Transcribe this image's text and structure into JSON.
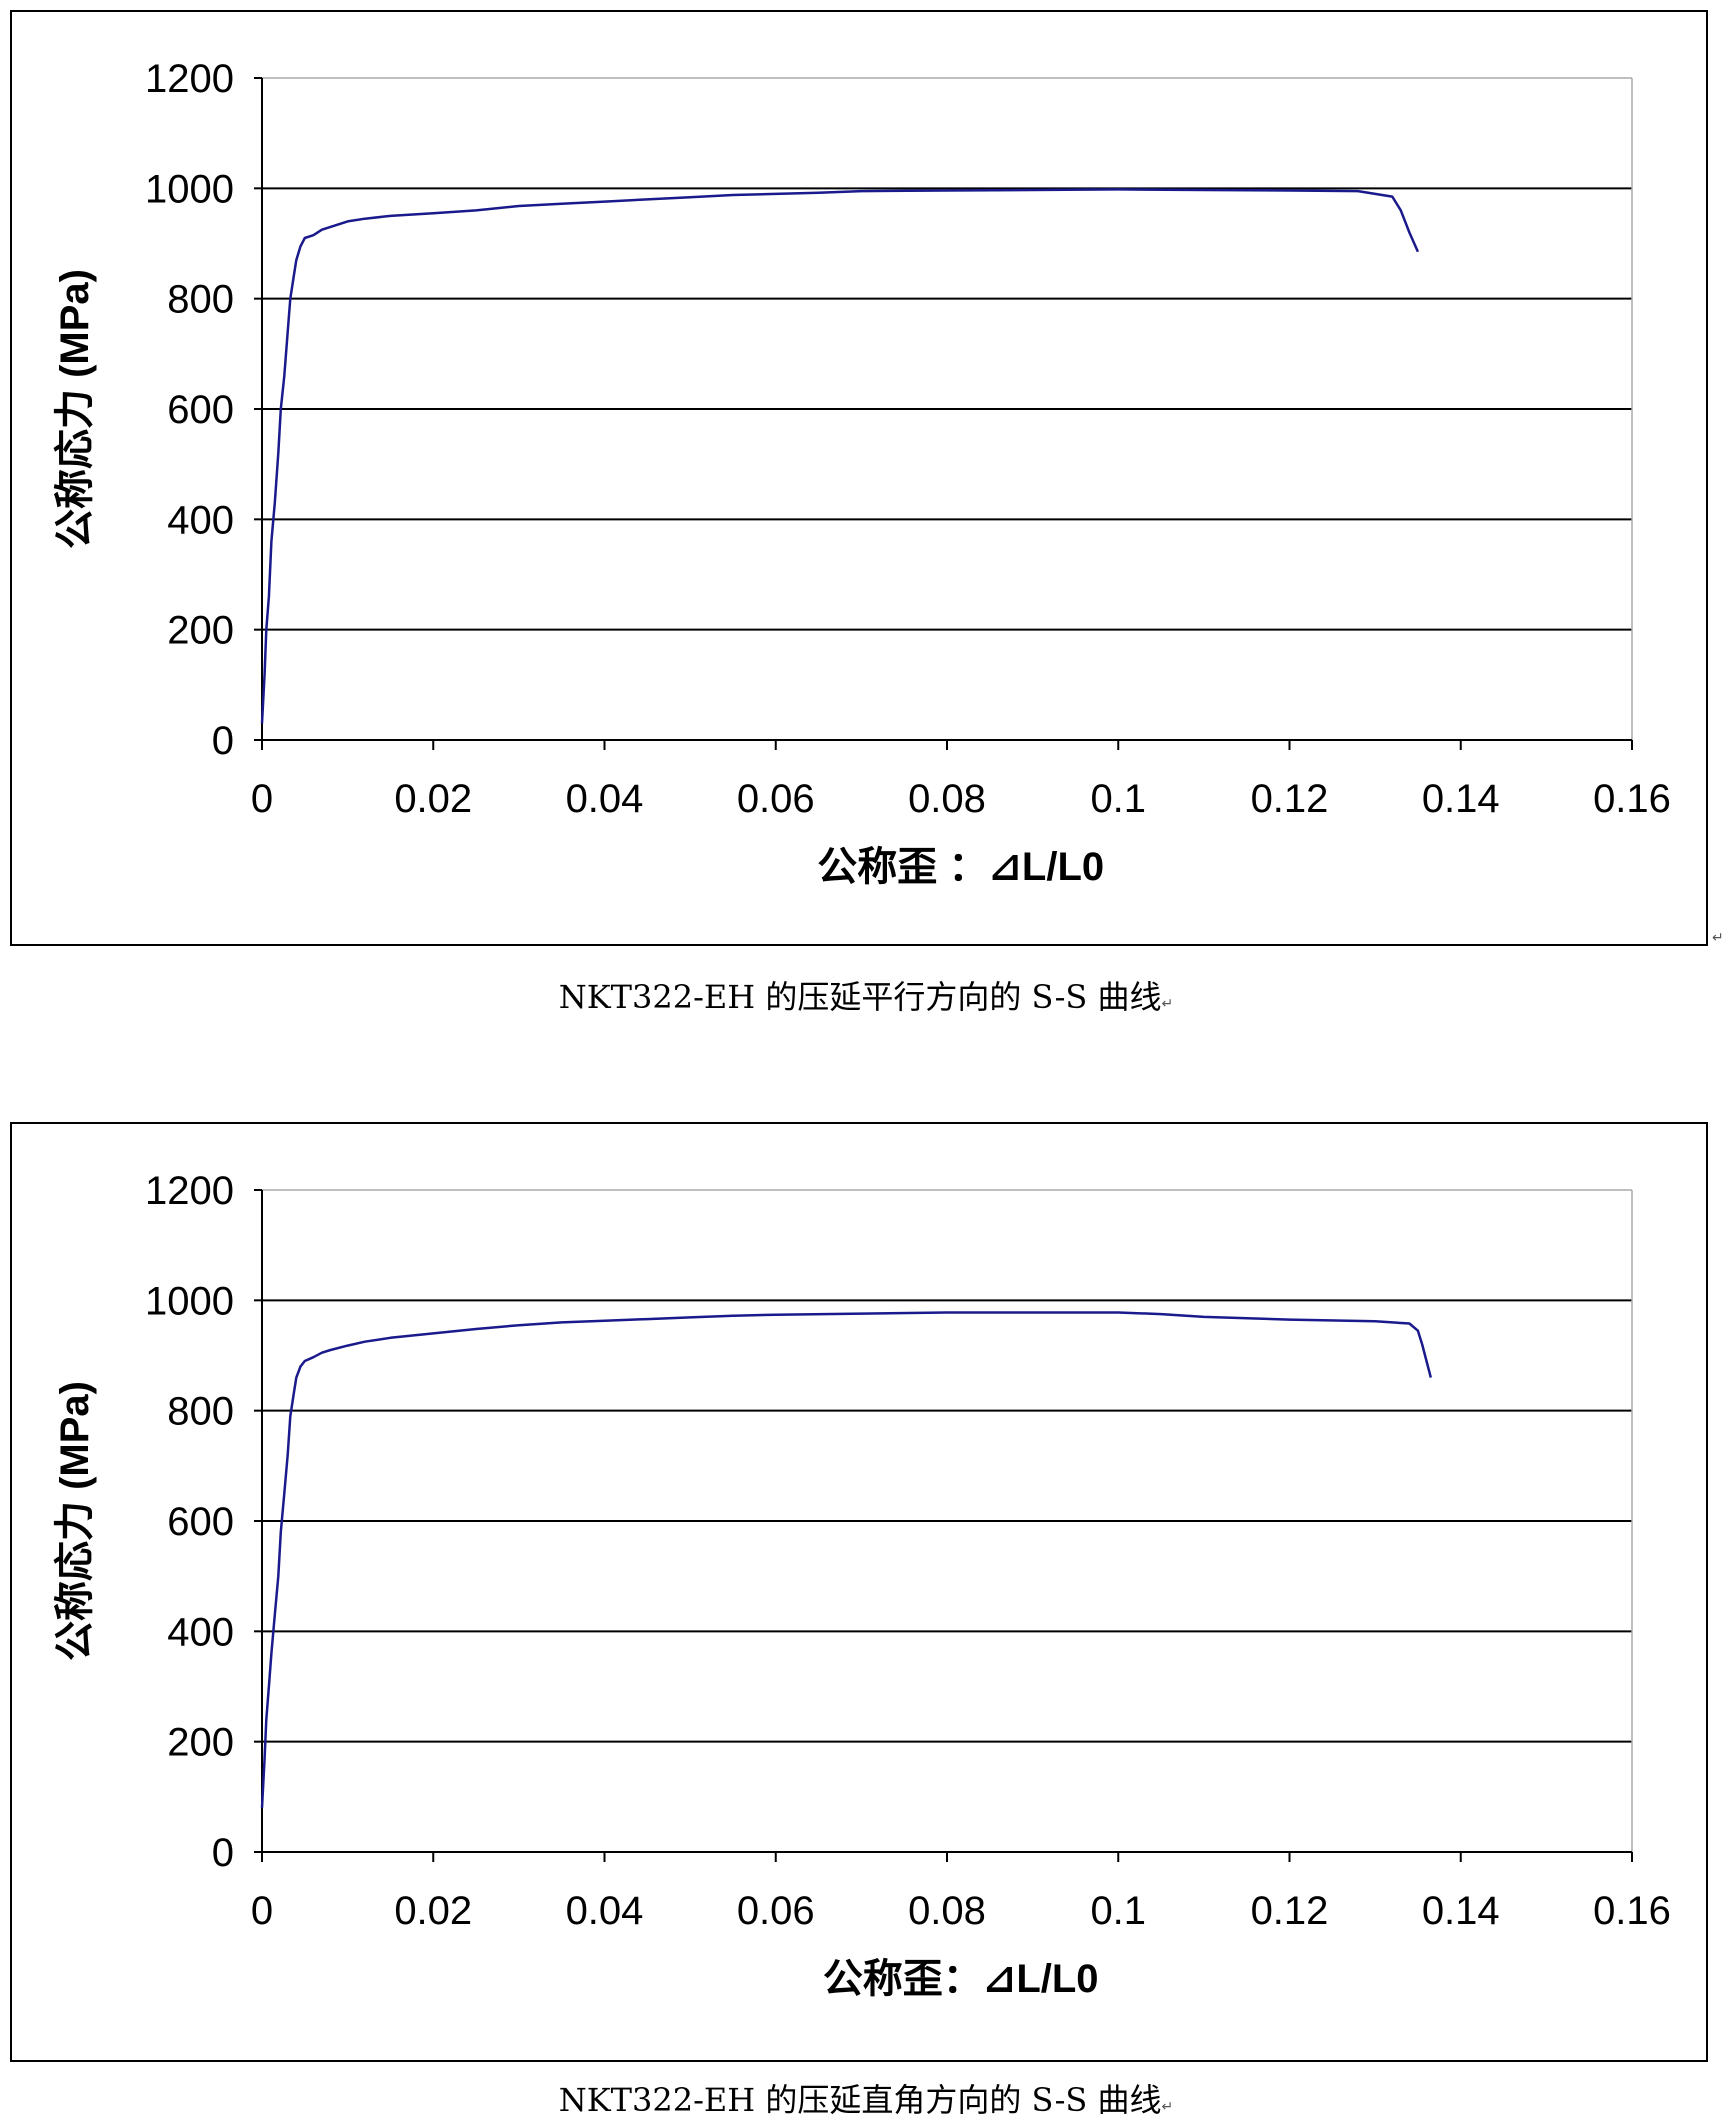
{
  "chart_data": [
    {
      "type": "line",
      "xlabel": "公称歪 ：⊿L/L0",
      "ylabel": "公称応力 (MPa)",
      "xlim": [
        0,
        0.16
      ],
      "ylim": [
        0,
        1200
      ],
      "x_ticks": [
        "0",
        "0.02",
        "0.04",
        "0.06",
        "0.08",
        "0.1",
        "0.12",
        "0.14",
        "0.16"
      ],
      "y_ticks": [
        "0",
        "200",
        "400",
        "600",
        "800",
        "1000",
        "1200"
      ],
      "grid": "horizontal",
      "line_color": "#1a1a8c",
      "series": [
        {
          "x": [
            0,
            0.0003,
            0.0005,
            0.0008,
            0.0011,
            0.0015,
            0.0019,
            0.0022,
            0.0026,
            0.003,
            0.0033,
            0.0037,
            0.004,
            0.0045,
            0.005,
            0.006,
            0.007,
            0.008,
            0.01,
            0.012,
            0.015,
            0.02,
            0.025,
            0.03,
            0.035,
            0.04,
            0.045,
            0.05,
            0.055,
            0.06,
            0.065,
            0.07,
            0.08,
            0.09,
            0.1,
            0.11,
            0.12,
            0.128,
            0.13,
            0.132,
            0.133,
            0.134,
            0.135
          ],
          "y": [
            30,
            120,
            200,
            260,
            360,
            430,
            520,
            600,
            660,
            740,
            800,
            840,
            870,
            895,
            910,
            915,
            925,
            930,
            940,
            945,
            950,
            955,
            960,
            968,
            972,
            976,
            980,
            984,
            988,
            990,
            992,
            995,
            996,
            997,
            998,
            997,
            996,
            995,
            990,
            985,
            960,
            920,
            885
          ]
        }
      ]
    },
    {
      "type": "line",
      "xlabel": "公称歪：⊿L/L0",
      "ylabel": "公称応力 (MPa)",
      "xlim": [
        0,
        0.16
      ],
      "ylim": [
        0,
        1200
      ],
      "x_ticks": [
        "0",
        "0.02",
        "0.04",
        "0.06",
        "0.08",
        "0.1",
        "0.12",
        "0.14",
        "0.16"
      ],
      "y_ticks": [
        "0",
        "200",
        "400",
        "600",
        "800",
        "1000",
        "1200"
      ],
      "grid": "horizontal",
      "line_color": "#1a1a8c",
      "series": [
        {
          "x": [
            0,
            0.0003,
            0.0005,
            0.0008,
            0.0011,
            0.0015,
            0.0019,
            0.0022,
            0.0026,
            0.003,
            0.0033,
            0.0037,
            0.004,
            0.0045,
            0.005,
            0.006,
            0.007,
            0.008,
            0.01,
            0.012,
            0.015,
            0.02,
            0.025,
            0.03,
            0.035,
            0.04,
            0.045,
            0.05,
            0.055,
            0.06,
            0.07,
            0.08,
            0.09,
            0.1,
            0.105,
            0.11,
            0.12,
            0.13,
            0.134,
            0.135,
            0.1355,
            0.136,
            0.1365
          ],
          "y": [
            80,
            170,
            240,
            300,
            360,
            430,
            500,
            580,
            650,
            720,
            790,
            830,
            860,
            880,
            890,
            897,
            905,
            910,
            918,
            925,
            932,
            940,
            948,
            955,
            960,
            963,
            966,
            969,
            972,
            974,
            976,
            978,
            978,
            978,
            975,
            970,
            965,
            962,
            958,
            945,
            920,
            890,
            860
          ]
        }
      ]
    }
  ],
  "captions": [
    "NKT322-EH 的压延平行方向的 S-S 曲线",
    "NKT322-EH 的压延直角方向的 S-S 曲线"
  ],
  "para_mark": "↵"
}
